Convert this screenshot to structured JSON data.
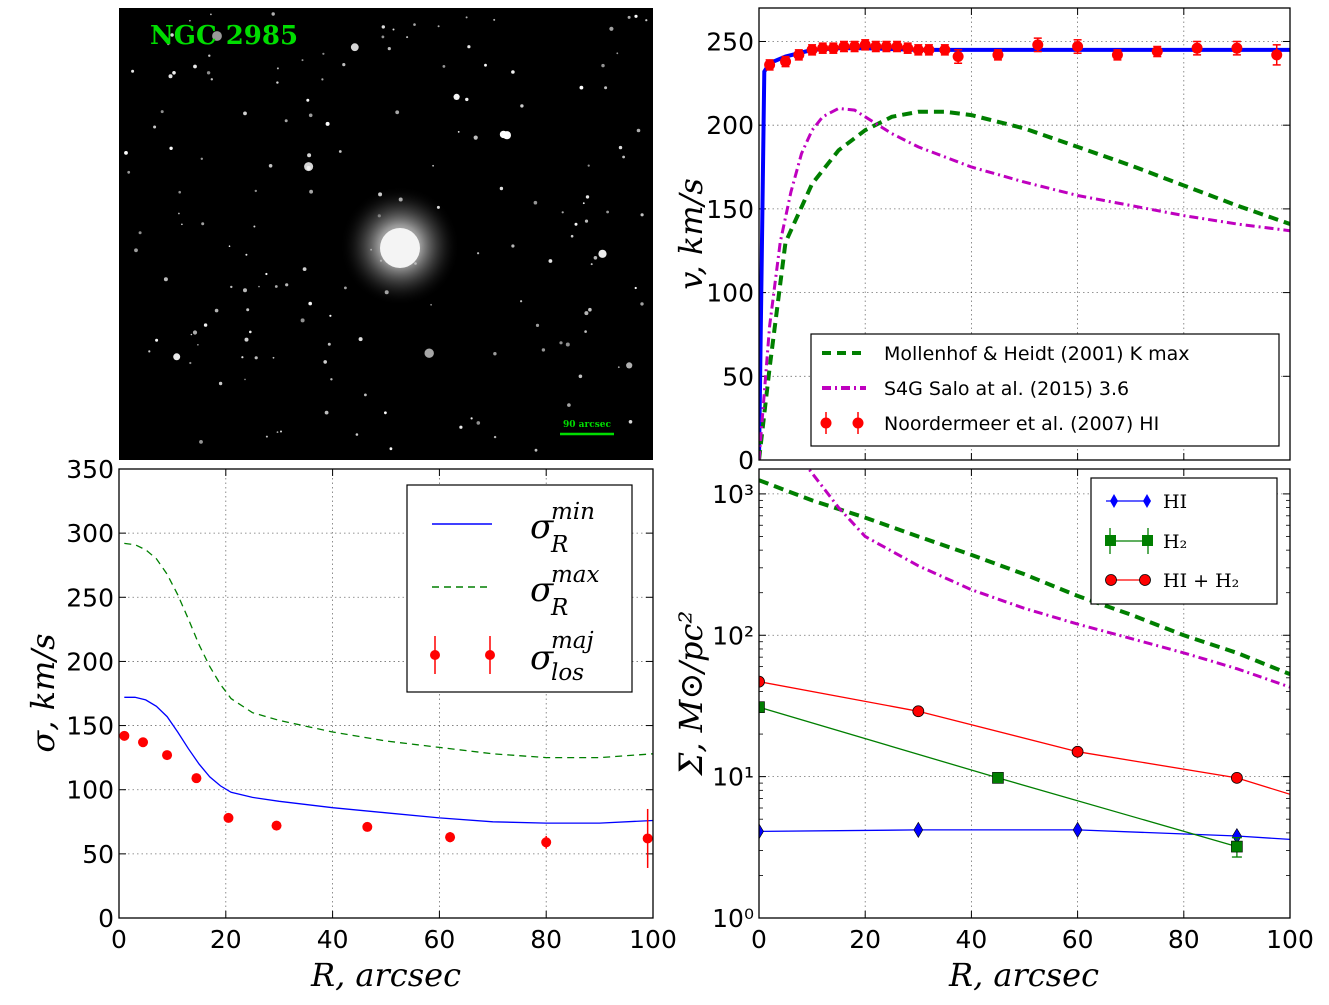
{
  "image_panel": {
    "title": "NGC 2985",
    "scale_label": "90 arcsec",
    "colors": {
      "label": "#00dd00",
      "background": "#000000"
    }
  },
  "chart_data": [
    {
      "id": "rotation",
      "type": "line",
      "ylabel": "v, km/s",
      "xlim": [
        0,
        100
      ],
      "ylim": [
        0,
        270
      ],
      "yticks": [
        0,
        50,
        100,
        150,
        200,
        250
      ],
      "grid": true,
      "legend_position": "bottom-right",
      "series": [
        {
          "id": "model",
          "color": "#0000ff",
          "style": "solid",
          "x": [
            0,
            1,
            2,
            5,
            10,
            15,
            20,
            30,
            40,
            50,
            60,
            70,
            80,
            90,
            100
          ],
          "y": [
            0,
            232,
            237,
            241,
            245,
            246,
            246,
            245,
            245,
            245,
            245,
            245,
            245,
            245,
            245
          ]
        },
        {
          "id": "mollenhof",
          "name": "Mollenhof & Heidt (2001) K max",
          "color": "#007f00",
          "style": "dashed",
          "x": [
            0,
            2,
            5,
            10,
            15,
            20,
            25,
            30,
            35,
            40,
            50,
            60,
            70,
            80,
            90,
            100
          ],
          "y": [
            0,
            55,
            130,
            165,
            185,
            197,
            205,
            208,
            208,
            206,
            198,
            187,
            176,
            164,
            152,
            141
          ]
        },
        {
          "id": "salo",
          "name": "S4G Salo at al. (2015) 3.6",
          "color": "#bf00bf",
          "style": "dashdot",
          "x": [
            0,
            1,
            2,
            4,
            6,
            8,
            10,
            12,
            15,
            18,
            20,
            25,
            30,
            40,
            50,
            60,
            70,
            80,
            90,
            100
          ],
          "y": [
            0,
            40,
            80,
            130,
            160,
            183,
            197,
            205,
            210,
            209,
            205,
            195,
            187,
            175,
            166,
            158,
            152,
            146,
            141,
            137
          ]
        },
        {
          "id": "noordermeer",
          "name": "Noordermeer et al. (2007) HI",
          "color": "#ff0000",
          "style": "points",
          "x": [
            2,
            5,
            7.5,
            10,
            12,
            14,
            16,
            18,
            20,
            22,
            24,
            26,
            28,
            30,
            32,
            35,
            37.5,
            45,
            52.5,
            60,
            67.5,
            75,
            82.5,
            90,
            97.5
          ],
          "y": [
            236,
            238,
            242,
            245,
            246,
            246,
            247,
            247,
            248,
            247,
            247,
            247,
            246,
            245,
            245,
            245,
            241,
            242,
            248,
            247,
            242,
            244,
            246,
            246,
            242
          ],
          "yerr": [
            3,
            3,
            3,
            3,
            3,
            3,
            3,
            3,
            3,
            3,
            3,
            3,
            3,
            3,
            3,
            3,
            4,
            3,
            4,
            4,
            3,
            3,
            4,
            4,
            6
          ]
        }
      ]
    },
    {
      "id": "dispersion",
      "type": "line",
      "xlabel": "R, arcsec",
      "ylabel": "σ, km/s",
      "xlim": [
        0,
        100
      ],
      "ylim": [
        0,
        350
      ],
      "xticks": [
        0,
        20,
        40,
        60,
        80,
        100
      ],
      "yticks": [
        0,
        50,
        100,
        150,
        200,
        250,
        300,
        350
      ],
      "grid": true,
      "legend_position": "top-right",
      "series": [
        {
          "id": "sig_min",
          "name": "σ_R^min",
          "color": "#0000ff",
          "style": "solid",
          "x": [
            1,
            3,
            5,
            7,
            9,
            11,
            13,
            15,
            17,
            19,
            21,
            25,
            30,
            40,
            50,
            60,
            70,
            80,
            90,
            100
          ],
          "y": [
            172,
            172,
            170,
            165,
            157,
            145,
            132,
            120,
            110,
            103,
            98,
            94,
            91,
            86,
            82,
            78,
            75,
            74,
            74,
            76
          ]
        },
        {
          "id": "sig_max",
          "name": "σ_R^max",
          "color": "#007f00",
          "style": "dashed",
          "x": [
            1,
            3,
            5,
            7,
            9,
            11,
            13,
            15,
            17,
            19,
            21,
            25,
            30,
            40,
            50,
            60,
            70,
            80,
            90,
            100
          ],
          "y": [
            292,
            291,
            287,
            280,
            268,
            252,
            233,
            213,
            196,
            182,
            171,
            160,
            154,
            145,
            138,
            133,
            128,
            125,
            125,
            128
          ]
        },
        {
          "id": "sig_los",
          "name": "σ_los^maj",
          "color": "#ff0000",
          "style": "points",
          "x": [
            1,
            4.5,
            9,
            14.5,
            20.5,
            29.5,
            46.5,
            62,
            80,
            99
          ],
          "y": [
            142,
            137,
            127,
            109,
            78,
            72,
            71,
            63,
            59,
            62
          ],
          "yerr": [
            0,
            0,
            0,
            0,
            0,
            0,
            0,
            4,
            5,
            23
          ]
        }
      ]
    },
    {
      "id": "surface_density",
      "type": "line",
      "xlabel": "R, arcsec",
      "ylabel": "Σ, M⊙/pc²",
      "xlim": [
        0,
        100
      ],
      "ylim": [
        1,
        1500
      ],
      "log_y": true,
      "xticks": [
        0,
        20,
        40,
        60,
        80,
        100
      ],
      "yticks": [
        1,
        10,
        100,
        1000
      ],
      "ytick_labels": [
        "10⁰",
        "10¹",
        "10²",
        "10³"
      ],
      "grid": true,
      "legend_position": "top-right",
      "series": [
        {
          "id": "hi",
          "name": "HI",
          "color": "#0000ff",
          "style": "line-diamond",
          "x": [
            0,
            30,
            60,
            90,
            100
          ],
          "y": [
            4.1,
            4.2,
            4.2,
            3.8,
            3.6
          ],
          "markers_at": [
            0,
            30,
            60,
            90
          ]
        },
        {
          "id": "h2",
          "name": "H₂",
          "color": "#007f00",
          "style": "line-square",
          "x": [
            0,
            45,
            90
          ],
          "y": [
            31,
            9.8,
            3.2
          ],
          "yerr": [
            0,
            0,
            0.5
          ],
          "markers_at": [
            0,
            45,
            90
          ]
        },
        {
          "id": "total",
          "name": "HI + H₂",
          "color": "#ff0000",
          "style": "line-circle",
          "x": [
            0,
            30,
            60,
            90,
            100
          ],
          "y": [
            47,
            29,
            15,
            9.8,
            7.5
          ],
          "markers_at": [
            0,
            30,
            60,
            90
          ]
        },
        {
          "id": "stellar_k",
          "color": "#007f00",
          "style": "dashed-thick",
          "x": [
            0,
            10,
            20,
            30,
            40,
            50,
            60,
            70,
            80,
            90,
            100
          ],
          "y": [
            1250,
            900,
            680,
            500,
            370,
            270,
            190,
            140,
            100,
            75,
            53
          ]
        },
        {
          "id": "stellar_36",
          "color": "#bf00bf",
          "style": "dashdot-thick",
          "x": [
            8,
            10,
            15,
            20,
            30,
            40,
            50,
            60,
            70,
            80,
            90,
            100
          ],
          "y": [
            1750,
            1400,
            800,
            500,
            310,
            210,
            155,
            120,
            95,
            75,
            58,
            43
          ]
        }
      ]
    }
  ]
}
